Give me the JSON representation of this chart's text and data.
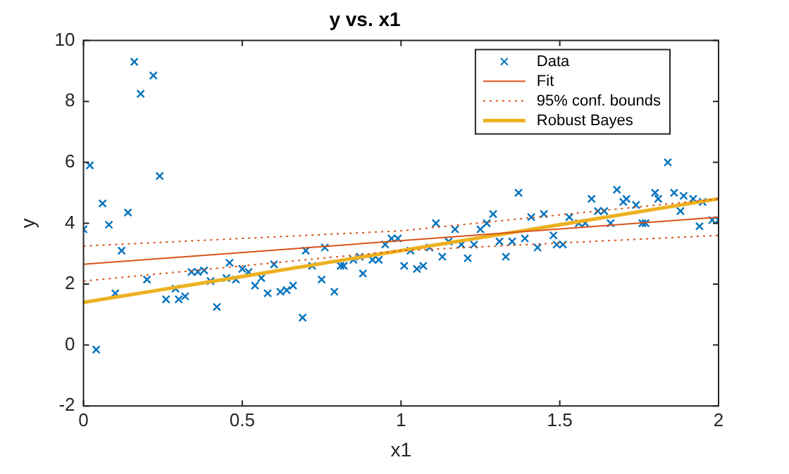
{
  "chart_data": {
    "type": "scatter",
    "title": "y vs. x1",
    "xlabel": "x1",
    "ylabel": "y",
    "xlim": [
      0,
      2
    ],
    "xticks": [
      0,
      0.5,
      1,
      1.5,
      2
    ],
    "ylim": [
      -2,
      10
    ],
    "yticks": [
      -2,
      0,
      2,
      4,
      6,
      8,
      10
    ],
    "grid": false,
    "legend": "top right",
    "series": [
      {
        "name": "Data",
        "marker": "cross",
        "color": "#0072bd",
        "x": [
          0,
          0.02,
          0.04,
          0.06,
          0.08,
          0.1,
          0.12,
          0.14,
          0.16,
          0.18,
          0.2,
          0.22,
          0.24,
          0.26,
          0.29,
          0.3,
          0.32,
          0.34,
          0.36,
          0.38,
          0.4,
          0.42,
          0.45,
          0.46,
          0.48,
          0.5,
          0.52,
          0.54,
          0.56,
          0.58,
          0.6,
          0.62,
          0.64,
          0.66,
          0.69,
          0.7,
          0.72,
          0.75,
          0.76,
          0.79,
          0.81,
          0.82,
          0.85,
          0.87,
          0.88,
          0.91,
          0.93,
          0.95,
          0.97,
          0.99,
          1.01,
          1.03,
          1.05,
          1.07,
          1.09,
          1.11,
          1.13,
          1.15,
          1.17,
          1.19,
          1.21,
          1.23,
          1.25,
          1.27,
          1.29,
          1.31,
          1.33,
          1.35,
          1.37,
          1.39,
          1.41,
          1.43,
          1.45,
          1.48,
          1.49,
          1.51,
          1.53,
          1.56,
          1.58,
          1.6,
          1.62,
          1.64,
          1.66,
          1.68,
          1.7,
          1.71,
          1.74,
          1.76,
          1.77,
          1.8,
          1.81,
          1.84,
          1.86,
          1.88,
          1.89,
          1.92,
          1.94,
          1.95,
          1.98,
          2
        ],
        "values": [
          3.8,
          5.9,
          -0.15,
          4.65,
          3.95,
          1.7,
          3.1,
          4.35,
          9.3,
          8.25,
          2.15,
          8.85,
          5.55,
          1.5,
          1.85,
          1.5,
          1.6,
          2.4,
          2.4,
          2.45,
          2.1,
          1.25,
          2.2,
          2.7,
          2.15,
          2.5,
          2.4,
          1.95,
          2.2,
          1.7,
          2.65,
          1.75,
          1.8,
          1.95,
          0.9,
          3.1,
          2.6,
          2.15,
          3.2,
          1.75,
          2.6,
          2.6,
          2.8,
          2.9,
          2.35,
          2.8,
          2.8,
          3.3,
          3.5,
          3.5,
          2.6,
          3.1,
          2.5,
          2.6,
          3.2,
          4,
          2.9,
          3.4,
          3.8,
          3.3,
          2.85,
          3.3,
          3.8,
          4,
          4.3,
          3.4,
          2.9,
          3.4,
          5,
          3.5,
          4.2,
          3.2,
          4.3,
          3.6,
          3.3,
          3.3,
          4.2,
          4,
          4,
          4.8,
          4.4,
          4.4,
          4,
          5.1,
          4.7,
          4.8,
          4.6,
          4,
          4,
          5,
          4.8,
          6,
          5,
          4.4,
          4.9,
          4.8,
          3.9,
          4.7,
          4.1,
          4.1
        ]
      },
      {
        "name": "Fit",
        "type": "line",
        "line_style": "solid",
        "color": "#d95319",
        "x": [
          0,
          2
        ],
        "values": [
          2.65,
          4.2
        ]
      },
      {
        "name": "95% conf. bounds",
        "type": "line",
        "line_style": "dotted",
        "color": "#d95319",
        "x": [
          0,
          1,
          2
        ],
        "values": [
          3.25,
          3.75,
          4.8
        ]
      },
      {
        "type": "line",
        "line_style": "dotted",
        "color": "#d95319",
        "x": [
          0,
          1,
          2
        ],
        "values": [
          2.1,
          3.1,
          3.6
        ]
      },
      {
        "name": "Robust Bayes",
        "type": "line",
        "line_style": "solid",
        "color": "#edb120",
        "x": [
          0,
          2
        ],
        "values": [
          1.4,
          4.8
        ]
      }
    ]
  }
}
